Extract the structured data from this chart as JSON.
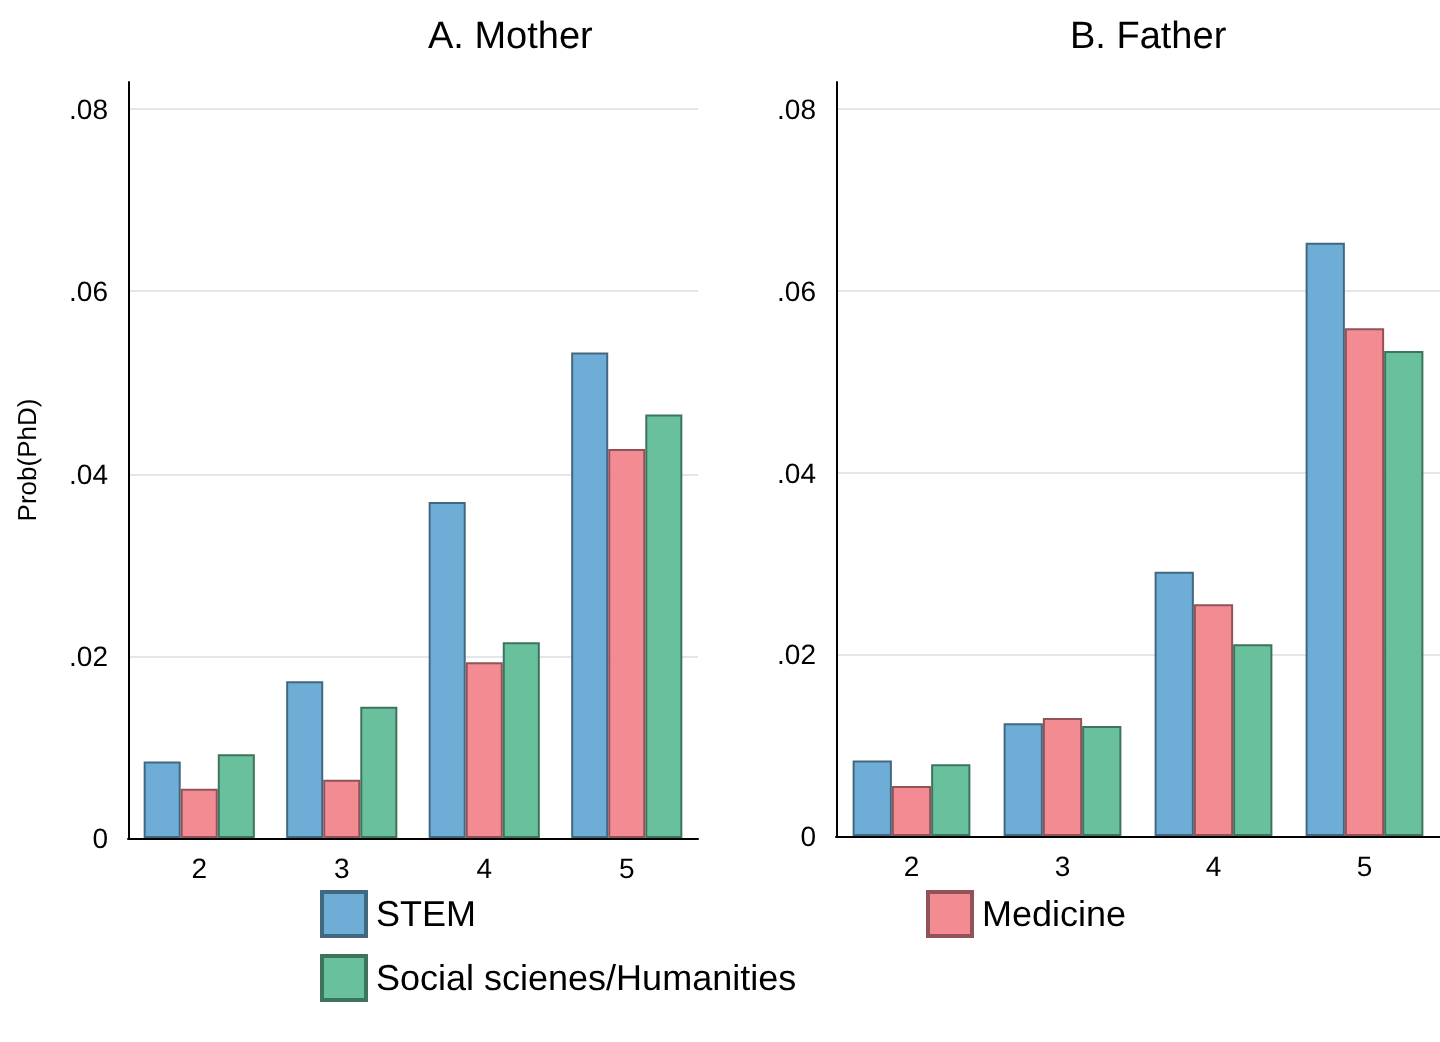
{
  "chart_data": [
    {
      "type": "bar",
      "title": "A. Mother",
      "ylabel": "Prob(PhD)",
      "categories": [
        "2",
        "3",
        "4",
        "5"
      ],
      "series": [
        {
          "name": "STEM",
          "color": "#6eaed6",
          "values": [
            0.0084,
            0.0172,
            0.0369,
            0.0533
          ]
        },
        {
          "name": "Medicine",
          "color": "#f28b92",
          "values": [
            0.0054,
            0.0064,
            0.0193,
            0.0427
          ]
        },
        {
          "name": "Social scienes/Humanities",
          "color": "#68c09d",
          "values": [
            0.0092,
            0.0144,
            0.0215,
            0.0465
          ]
        }
      ],
      "ylim": [
        0,
        0.083
      ],
      "yticks": [
        0,
        {
          "value": 0.02,
          "label": ".02"
        },
        {
          "value": 0.04,
          "label": ".04"
        },
        {
          "value": 0.06,
          "label": ".06"
        },
        {
          "value": 0.08,
          "label": ".08"
        }
      ],
      "grid": "y",
      "legend": "bottom"
    },
    {
      "type": "bar",
      "title": "B. Father",
      "categories": [
        "2",
        "3",
        "4",
        "5"
      ],
      "series": [
        {
          "color": "#6eaed6",
          "values": [
            0.0083,
            0.0124,
            0.0291,
            0.0653
          ]
        },
        {
          "color": "#f28b92",
          "values": [
            0.0055,
            0.013,
            0.0255,
            0.0559
          ]
        },
        {
          "color": "#68c09d",
          "values": [
            0.0079,
            0.0121,
            0.0211,
            0.0534
          ]
        }
      ],
      "ylim": [
        0,
        0.083
      ],
      "yticks": [
        0,
        {
          "value": 0.02,
          "label": ".02"
        },
        {
          "value": 0.04,
          "label": ".04"
        },
        {
          "value": 0.06,
          "label": ".06"
        },
        {
          "value": 0.08,
          "label": ".08"
        }
      ],
      "grid": "y"
    }
  ]
}
